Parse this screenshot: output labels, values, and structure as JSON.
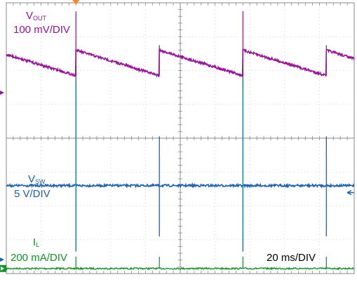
{
  "chart_data": {
    "type": "line",
    "title": "",
    "xlabel": "",
    "ylabel": "",
    "grid": true,
    "divisions": {
      "x": 10,
      "y": 8
    },
    "timebase_label": "20 ms/DIV",
    "x_unit": "ms",
    "x_range": [
      0,
      200
    ],
    "period_ms": 48,
    "colors": {
      "vout": "#9a119c",
      "vsw": "#1c5fb5",
      "il": "#12932b",
      "grid": "#bdbdbd",
      "frame": "#8a8a8a"
    },
    "series": [
      {
        "key": "vout",
        "name_main": "V",
        "name_sub": "OUT",
        "scale": "100 mV/DIV",
        "color": "#9a119c",
        "marker": "magenta-arrow",
        "ref_div": 6.05,
        "sawtooth": {
          "high_div": 6.6,
          "low_div": 5.85,
          "spike_div": 7.75
        },
        "events_ms": [
          40,
          88,
          136,
          184
        ]
      },
      {
        "key": "vsw",
        "name_main": "V",
        "name_sub": "SW",
        "scale": "5 V/DIV",
        "color": "#1c5fb5",
        "marker": "blue-arrow",
        "baseline_div": 2.6,
        "spikes": [
          {
            "t": 40,
            "top_div": 6.15,
            "bottom_div": 0.65
          },
          {
            "t": 88,
            "top_div": 4.05,
            "bottom_div": 1.1
          },
          {
            "t": 136,
            "top_div": 6.15,
            "bottom_div": 0.65
          },
          {
            "t": 184,
            "top_div": 4.05,
            "bottom_div": 1.1
          }
        ]
      },
      {
        "key": "il",
        "name_main": "I",
        "name_sub": "L",
        "scale": "200 mA/DIV",
        "color": "#12932b",
        "marker": "green-level",
        "baseline_div": 0.15,
        "pulse_div": 0.5,
        "events_ms": [
          40,
          88,
          136,
          184
        ]
      }
    ]
  },
  "markers": {
    "trigger": "orange-trigger-marker"
  }
}
